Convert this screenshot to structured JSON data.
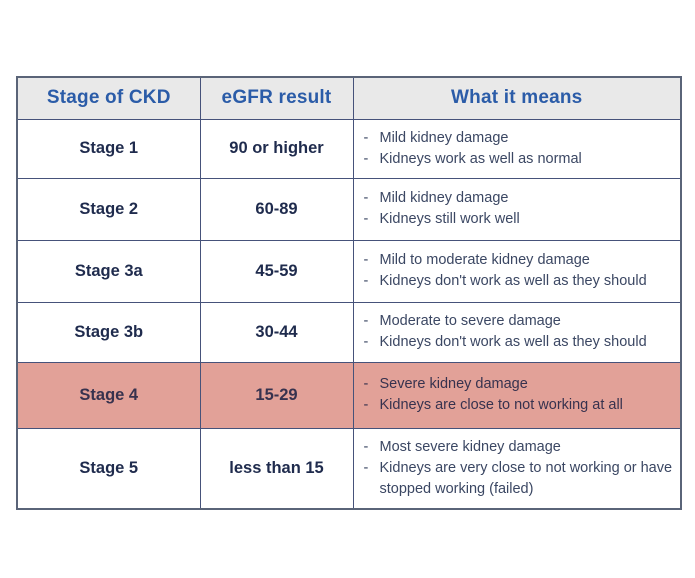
{
  "table": {
    "bullet": "-",
    "headers": [
      "Stage of CKD",
      "eGFR result",
      "What it means"
    ],
    "rows": [
      {
        "stage": "Stage 1",
        "egfr": "90 or higher",
        "meaning": [
          "Mild kidney damage",
          "Kidneys work as well as normal"
        ],
        "highlighted": false
      },
      {
        "stage": "Stage 2",
        "egfr": "60-89",
        "meaning": [
          "Mild kidney damage",
          "Kidneys still work well"
        ],
        "highlighted": false
      },
      {
        "stage": "Stage 3a",
        "egfr": "45-59",
        "meaning": [
          "Mild to moderate kidney damage",
          "Kidneys don't work as well as they should"
        ],
        "highlighted": false
      },
      {
        "stage": "Stage 3b",
        "egfr": "30-44",
        "meaning": [
          "Moderate to severe damage",
          "Kidneys don't work as well as they should"
        ],
        "highlighted": false
      },
      {
        "stage": "Stage 4",
        "egfr": "15-29",
        "meaning": [
          "Severe kidney damage",
          "Kidneys are close to not working at all"
        ],
        "highlighted": true
      },
      {
        "stage": "Stage 5",
        "egfr": "less than 15",
        "meaning": [
          "Most severe kidney damage",
          "Kidneys are very close to not working or have stopped working (failed)"
        ],
        "highlighted": false
      }
    ]
  },
  "colors": {
    "header_text": "#2b5ca8",
    "header_background": "#e9e9e9",
    "stage_text": "#1f2b4d",
    "body_text": "#3b4763",
    "border": "#46527a",
    "highlight_background": "#e2a198",
    "page_background": "#ffffff"
  },
  "chart_data": {
    "type": "table",
    "title": "",
    "columns": [
      "Stage of CKD",
      "eGFR result",
      "What it means"
    ],
    "rows": [
      [
        "Stage 1",
        "90 or higher",
        "Mild kidney damage; Kidneys work as well as normal"
      ],
      [
        "Stage 2",
        "60-89",
        "Mild kidney damage; Kidneys still work well"
      ],
      [
        "Stage 3a",
        "45-59",
        "Mild to moderate kidney damage; Kidneys don't work as well as they should"
      ],
      [
        "Stage 3b",
        "30-44",
        "Moderate to severe damage; Kidneys don't work as well as they should"
      ],
      [
        "Stage 4",
        "15-29",
        "Severe kidney damage; Kidneys are close to not working at all"
      ],
      [
        "Stage 5",
        "less than 15",
        "Most severe kidney damage; Kidneys are very close to not working or have stopped working (failed)"
      ]
    ],
    "highlighted_row": "Stage 4"
  }
}
